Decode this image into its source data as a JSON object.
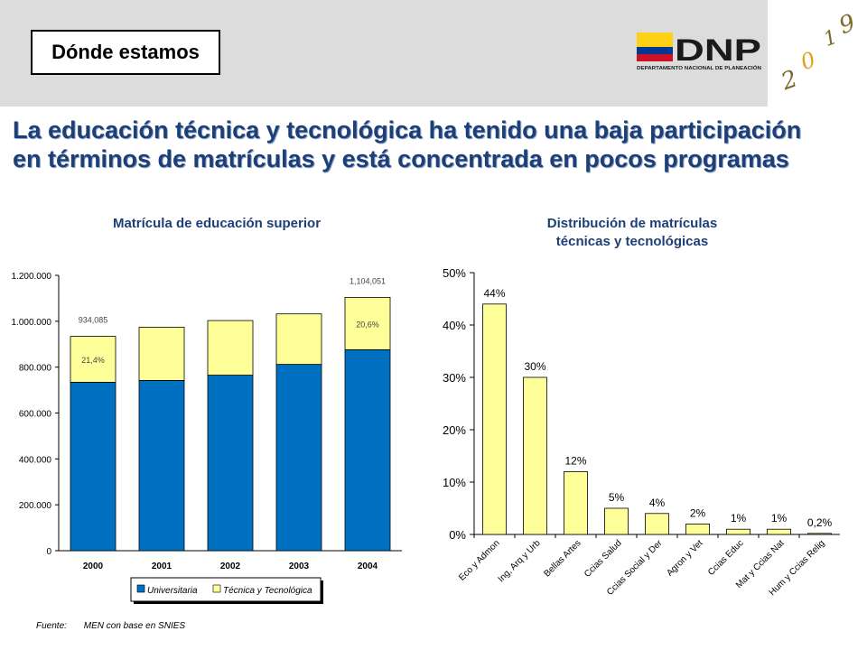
{
  "header": {
    "section_label": "Dónde estamos",
    "logo": {
      "name": "DNP",
      "subtitle": "DEPARTAMENTO NACIONAL DE PLANEACIÓN",
      "flag_colors": [
        "#fcd116",
        "#003893",
        "#ce1126"
      ]
    },
    "year_logo": {
      "digits": [
        "2",
        "0",
        "1",
        "9"
      ]
    }
  },
  "headline": {
    "line1": "La educación técnica y tecnológica ha tenido una baja participación",
    "line2": "en términos de matrículas y está concentrada en pocos programas"
  },
  "footer": {
    "source_label": "Fuente:",
    "source_text": "MEN  con base en SNIES"
  },
  "chart_data": [
    {
      "type": "bar",
      "stacked": true,
      "title": "Matrícula de educación superior",
      "categories": [
        "2000",
        "2001",
        "2002",
        "2003",
        "2004"
      ],
      "series": [
        {
          "name": "Universitaria",
          "color": "#0070c0",
          "values": [
            734000,
            742000,
            765000,
            812000,
            876000
          ]
        },
        {
          "name": "Técnica y Tecnológica",
          "color": "#ffff99",
          "values": [
            200085,
            232000,
            238000,
            220000,
            228051
          ]
        }
      ],
      "yticks": [
        "0",
        "200.000",
        "400.000",
        "600.000",
        "800.000",
        "1.000.000",
        "1.200.000"
      ],
      "ylim": [
        0,
        1200000
      ],
      "annotations": [
        {
          "category": "2000",
          "total_label": "934,085",
          "share_label": "21,4%"
        },
        {
          "category": "2004",
          "total_label": "1,104,051",
          "share_label": "20,6%"
        }
      ],
      "legend": "bottom"
    },
    {
      "type": "bar",
      "title_line1": "Distribución de matrículas",
      "title_line2": "técnicas y tecnológicas",
      "categories": [
        "Eco y Admon",
        "Ing, Arq y Urb",
        "Bellas Artes",
        "Ccias Salud",
        "Ccias Social y Der",
        "Agron y Vet",
        "Ccias Educ",
        "Mat y Ccias Nat",
        "Hum y Ccias Relig"
      ],
      "values": [
        44,
        30,
        12,
        5,
        4,
        2,
        1,
        1,
        0.2
      ],
      "value_labels": [
        "44%",
        "30%",
        "12%",
        "5%",
        "4%",
        "2%",
        "1%",
        "1%",
        "0,2%"
      ],
      "color": "#ffff99",
      "yticks": [
        "0%",
        "10%",
        "20%",
        "30%",
        "40%",
        "50%"
      ],
      "ylim": [
        0,
        50
      ]
    }
  ]
}
